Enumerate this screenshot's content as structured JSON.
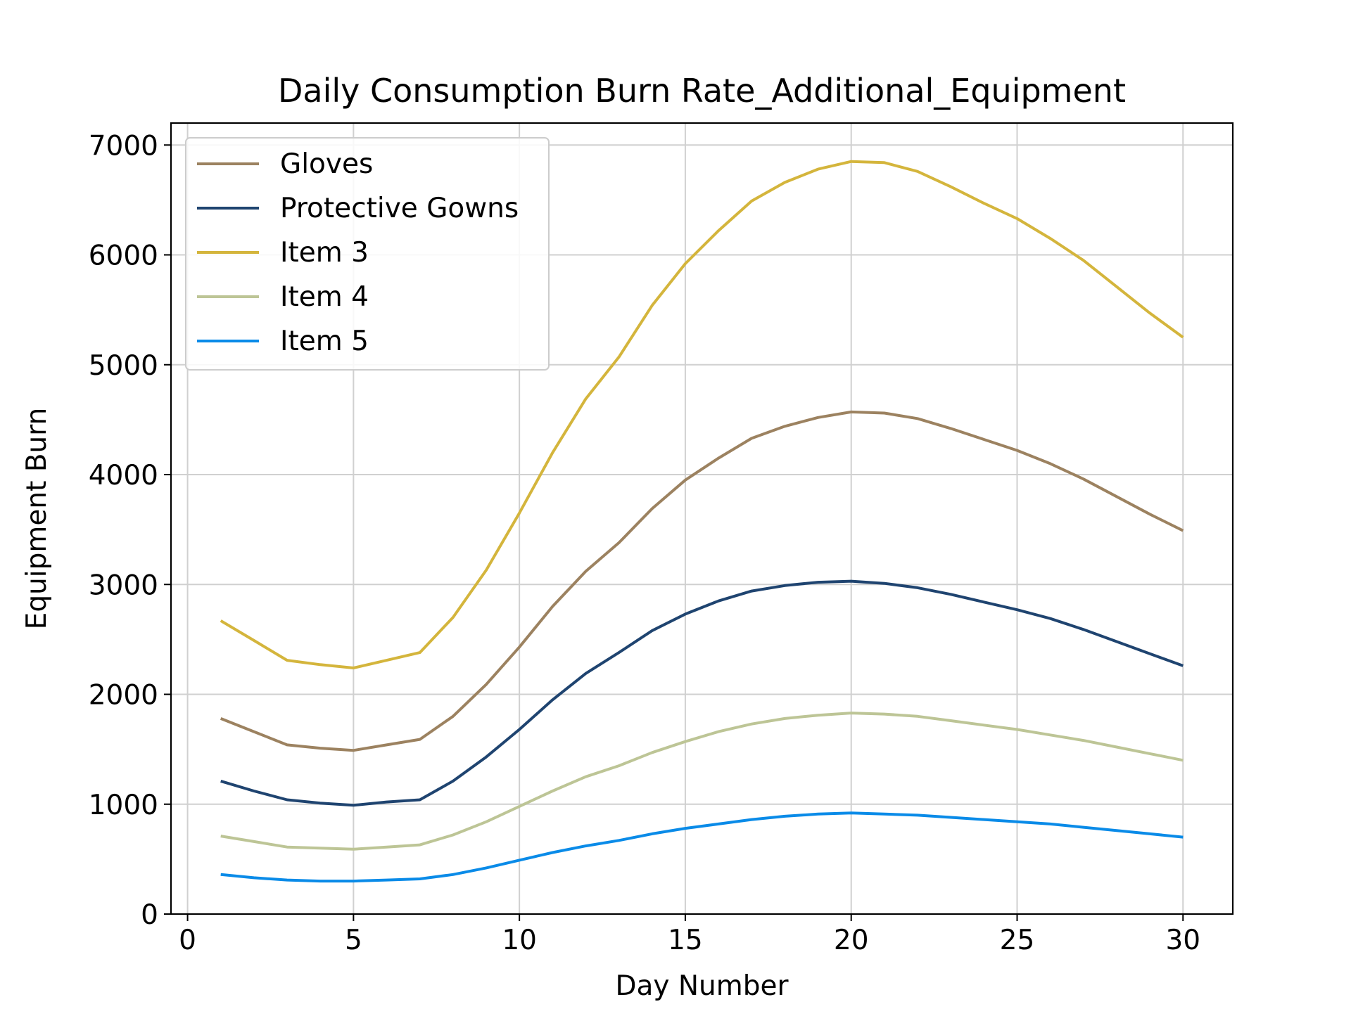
{
  "chart_data": {
    "type": "line",
    "title": "Daily Consumption Burn Rate_Additional_Equipment",
    "xlabel": "Day Number",
    "ylabel": "Equipment Burn",
    "xlim": [
      -0.5,
      31.5
    ],
    "ylim": [
      0,
      7200
    ],
    "xticks": [
      0,
      5,
      10,
      15,
      20,
      25,
      30
    ],
    "yticks": [
      0,
      1000,
      2000,
      3000,
      4000,
      5000,
      6000,
      7000
    ],
    "grid": true,
    "legend_position": "upper-left",
    "x": [
      1,
      2,
      3,
      4,
      5,
      6,
      7,
      8,
      9,
      10,
      11,
      12,
      13,
      14,
      15,
      16,
      17,
      18,
      19,
      20,
      21,
      22,
      23,
      24,
      25,
      26,
      27,
      28,
      29,
      30
    ],
    "series": [
      {
        "name": "Gloves",
        "color": "#9c8260",
        "values": [
          1780,
          1660,
          1540,
          1510,
          1490,
          1540,
          1590,
          1800,
          2090,
          2430,
          2800,
          3120,
          3380,
          3690,
          3950,
          4150,
          4330,
          4440,
          4520,
          4570,
          4560,
          4510,
          4420,
          4320,
          4220,
          4100,
          3960,
          3800,
          3640,
          3490
        ]
      },
      {
        "name": "Protective Gowns",
        "color": "#1f4470",
        "values": [
          1210,
          1120,
          1040,
          1010,
          990,
          1020,
          1040,
          1210,
          1430,
          1680,
          1950,
          2190,
          2380,
          2580,
          2730,
          2850,
          2940,
          2990,
          3020,
          3030,
          3010,
          2970,
          2910,
          2840,
          2770,
          2690,
          2590,
          2480,
          2370,
          2260
        ]
      },
      {
        "name": "Item 3",
        "color": "#d4b53c",
        "values": [
          2670,
          2490,
          2310,
          2270,
          2240,
          2310,
          2380,
          2700,
          3130,
          3650,
          4200,
          4690,
          5070,
          5540,
          5920,
          6220,
          6490,
          6660,
          6780,
          6850,
          6840,
          6760,
          6620,
          6470,
          6330,
          6150,
          5950,
          5710,
          5470,
          5250
        ]
      },
      {
        "name": "Item 4",
        "color": "#bdc596",
        "values": [
          710,
          660,
          610,
          600,
          590,
          610,
          630,
          720,
          840,
          980,
          1120,
          1250,
          1350,
          1470,
          1570,
          1660,
          1730,
          1780,
          1810,
          1830,
          1820,
          1800,
          1760,
          1720,
          1680,
          1630,
          1580,
          1520,
          1460,
          1400
        ]
      },
      {
        "name": "Item 5",
        "color": "#0a8be8",
        "values": [
          360,
          330,
          310,
          300,
          300,
          310,
          320,
          360,
          420,
          490,
          560,
          620,
          670,
          730,
          780,
          820,
          860,
          890,
          910,
          920,
          910,
          900,
          880,
          860,
          840,
          820,
          790,
          760,
          730,
          700
        ]
      }
    ]
  }
}
